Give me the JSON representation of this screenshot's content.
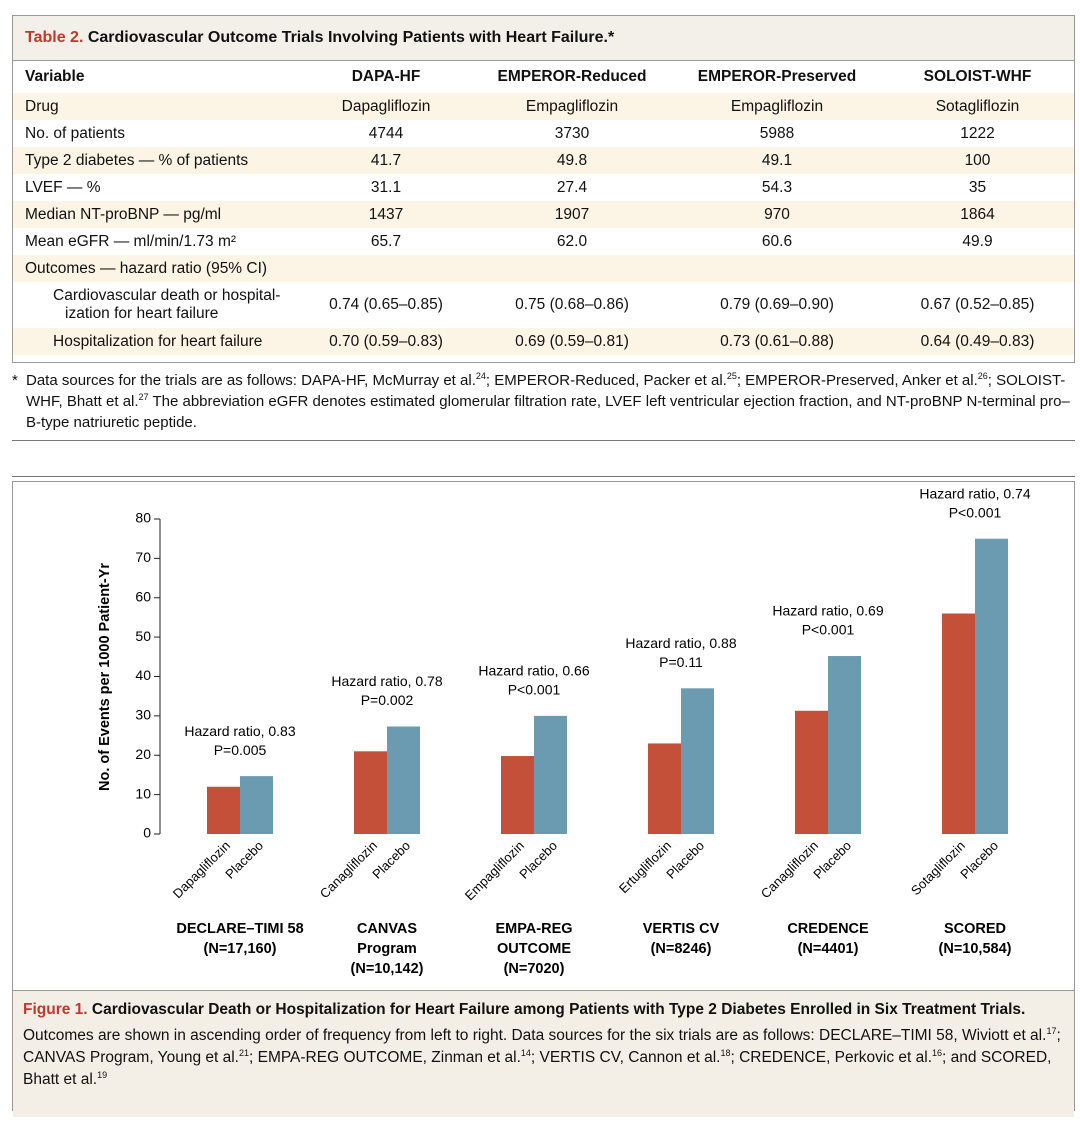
{
  "table": {
    "label": "Table 2.",
    "title": "Cardiovascular Outcome Trials Involving Patients with Heart Failure.*",
    "header": [
      "Variable",
      "DAPA-HF",
      "EMPEROR-Reduced",
      "EMPEROR-Preserved",
      "SOLOIST-WHF"
    ],
    "rows": [
      [
        "Drug",
        "Dapagliflozin",
        "Empagliflozin",
        "Empagliflozin",
        "Sotagliflozin"
      ],
      [
        "No. of patients",
        "4744",
        "3730",
        "5988",
        "1222"
      ],
      [
        "Type 2 diabetes — % of patients",
        "41.7",
        "49.8",
        "49.1",
        "100"
      ],
      [
        "LVEF — %",
        "31.1",
        "27.4",
        "54.3",
        "35"
      ],
      [
        "Median NT-proBNP — pg/ml",
        "1437",
        "1907",
        "970",
        "1864"
      ],
      [
        "Mean eGFR — ml/min/1.73 m²",
        "65.7",
        "62.0",
        "60.6",
        "49.9"
      ],
      [
        "Outcomes — hazard ratio (95% CI)"
      ],
      [
        "Cardiovascular death or hospital­ization for heart failure",
        "0.74 (0.65–0.85)",
        "0.75 (0.68–0.86)",
        "0.79 (0.69–0.90)",
        "0.67 (0.52–0.85)"
      ],
      [
        "Hospitalization for heart failure",
        "0.70 (0.59–0.83)",
        "0.69 (0.59–0.81)",
        "0.73 (0.61–0.88)",
        "0.64 (0.49–0.83)"
      ]
    ],
    "footnote_marker": "*",
    "footnote": [
      "Data sources for the trials are as follows: DAPA-HF, McMurray et al.",
      {
        "sup": "24"
      },
      "; EMPEROR-Reduced, Packer et al.",
      {
        "sup": "25"
      },
      "; EMPEROR-Preserved, Anker et al.",
      {
        "sup": "26"
      },
      "; SOLOIST-WHF, Bhatt et al.",
      {
        "sup": "27"
      },
      " The abbreviation eGFR denotes estimated glomerular filtration rate, LVEF left ventricular ejection fraction, and NT-proBNP N-terminal pro–B-type natriuretic peptide."
    ]
  },
  "chart_data": {
    "type": "bar",
    "y_label": "No. of Events per 1000 Patient-Yr",
    "categories": [
      [
        "DECLARE–TIMI 58",
        "(N=17,160)"
      ],
      [
        "CANVAS",
        "Program",
        "(N=10,142)"
      ],
      [
        "EMPA-REG",
        "OUTCOME",
        "(N=7020)"
      ],
      [
        "VERTIS CV",
        "(N=8246)"
      ],
      [
        "CREDENCE",
        "(N=4401)"
      ],
      [
        "SCORED",
        "(N=10,584)"
      ]
    ],
    "series": [
      {
        "color": "#c4503a",
        "labels": [
          "Dapagliflozin",
          "Canagliflozin",
          "Empagliflozin",
          "Ertugliflozin",
          "Canagliflozin",
          "Sotagliflozin"
        ],
        "values": [
          12,
          21,
          19.8,
          23,
          31.3,
          56
        ]
      },
      {
        "color": "#6b9bb0",
        "labels": [
          "Placebo",
          "Placebo",
          "Placebo",
          "Placebo",
          "Placebo",
          "Placebo"
        ],
        "values": [
          14.7,
          27.3,
          30,
          37,
          45.2,
          75
        ]
      }
    ],
    "annotations": [
      [
        "Hazard ratio, 0.83",
        "P=0.005"
      ],
      [
        "Hazard ratio, 0.78",
        "P=0.002"
      ],
      [
        "Hazard ratio, 0.66",
        "P<0.001"
      ],
      [
        "Hazard ratio, 0.88",
        "P=0.11"
      ],
      [
        "Hazard ratio, 0.69",
        "P<0.001"
      ],
      [
        "Hazard ratio, 0.74",
        "P<0.001"
      ]
    ],
    "ylim": [
      0,
      80
    ],
    "yticks": [
      0,
      10,
      20,
      30,
      40,
      50,
      60,
      70,
      80
    ]
  },
  "figure": {
    "label": "Figure 1.",
    "title": "Cardiovascular Death or Hospitalization for Heart Failure among Patients with Type 2 Diabetes Enrolled in Six Treatment Trials.",
    "body": [
      "Outcomes are shown in ascending order of frequency from left to right. Data sources for the six trials are as follows: DECLARE–TIMI 58, Wiviott et al.",
      {
        "sup": "17"
      },
      "; CANVAS Program, Young et al.",
      {
        "sup": "21"
      },
      "; EMPA-REG OUTCOME, Zinman et al.",
      {
        "sup": "14"
      },
      "; VERTIS CV, Cannon et al.",
      {
        "sup": "18"
      },
      "; CREDENCE, Perkovic et al.",
      {
        "sup": "16"
      },
      "; and SCORED, Bhatt et al.",
      {
        "sup": "19"
      }
    ]
  }
}
